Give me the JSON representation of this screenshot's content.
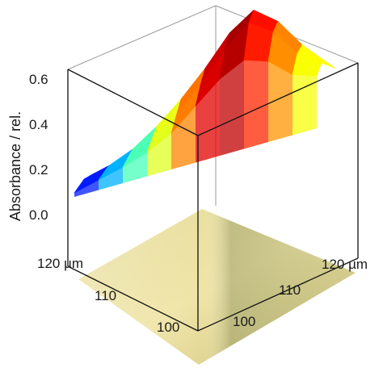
{
  "chart_data": {
    "type": "surface3d",
    "title": "",
    "zlabel": "Absorbance / rel.",
    "zticks": [
      "0.0",
      "0.2",
      "0.4",
      "0.6"
    ],
    "zlim": [
      0,
      0.65
    ],
    "xticks": [
      "100",
      "110",
      "120 µm"
    ],
    "yticks": [
      "100",
      "110",
      "120 µm"
    ],
    "colormap": "jet",
    "floor_image": "optical micrograph (beige/olive)",
    "surface": {
      "description_rows": "absorbance values along left-to-right diagonal ridge",
      "values": [
        [
          0.02,
          0.05,
          0.08,
          0.12,
          0.18,
          0.28,
          0.38,
          0.44,
          0.4,
          0.3,
          0.26
        ],
        [
          0.03,
          0.06,
          0.1,
          0.16,
          0.24,
          0.36,
          0.5,
          0.6,
          0.52,
          0.38,
          0.3
        ],
        [
          0.04,
          0.07,
          0.12,
          0.2,
          0.3,
          0.42,
          0.56,
          0.64,
          0.55,
          0.4,
          0.28
        ],
        [
          0.03,
          0.06,
          0.1,
          0.18,
          0.27,
          0.4,
          0.5,
          0.56,
          0.48,
          0.34,
          0.24
        ],
        [
          0.02,
          0.04,
          0.08,
          0.14,
          0.22,
          0.33,
          0.42,
          0.45,
          0.38,
          0.28,
          0.2
        ]
      ]
    }
  }
}
